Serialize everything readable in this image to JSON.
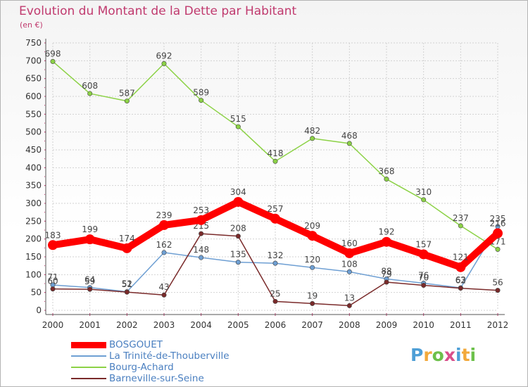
{
  "chart_data": {
    "type": "line",
    "title": "Evolution du Montant de la Dette par Habitant",
    "unit_label": "(en €)",
    "categories": [
      "2000",
      "2001",
      "2002",
      "2003",
      "2004",
      "2005",
      "2006",
      "2007",
      "2008",
      "2009",
      "2010",
      "2011",
      "2012"
    ],
    "ylim": [
      0,
      750
    ],
    "yticks": [
      0,
      50,
      100,
      150,
      200,
      250,
      300,
      350,
      400,
      450,
      500,
      550,
      600,
      650,
      700,
      750
    ],
    "grid": true,
    "legend_position": "bottom-left",
    "series": [
      {
        "name": "BOSGOUET",
        "color": "#ff0000",
        "emphasis": true,
        "values": [
          183,
          199,
          174,
          239,
          253,
          304,
          257,
          209,
          160,
          192,
          157,
          121,
          216
        ],
        "labels": [
          "183",
          "199",
          "174",
          "239",
          "253",
          "304",
          "257",
          "209",
          "160",
          "192",
          "157",
          "121",
          "216"
        ]
      },
      {
        "name": "La Trinité-de-Thouberville",
        "color": "#6e9fd3",
        "values": [
          71,
          64,
          52,
          162,
          148,
          135,
          132,
          120,
          108,
          88,
          76,
          63,
          235
        ],
        "labels": [
          "71",
          "64",
          "52",
          "162",
          "148",
          "135",
          "132",
          "120",
          "108",
          "88",
          "76",
          "63",
          "235"
        ]
      },
      {
        "name": "Bourg-Achard",
        "color": "#8cd246",
        "values": [
          698,
          608,
          587,
          692,
          589,
          515,
          418,
          482,
          468,
          368,
          310,
          237,
          171
        ],
        "labels": [
          "698",
          "608",
          "587",
          "692",
          "589",
          "515",
          "418",
          "482",
          "468",
          "368",
          "310",
          "237",
          "171"
        ]
      },
      {
        "name": "Barneville-sur-Seine",
        "color": "#7a2a2a",
        "values": [
          60,
          59,
          51,
          43,
          215,
          208,
          25,
          19,
          13,
          79,
          70,
          62,
          56
        ],
        "labels": [
          "60",
          "59",
          "51",
          "43",
          "215",
          "208",
          "25",
          "19",
          "13",
          "79",
          "70",
          "62",
          "56"
        ]
      }
    ]
  },
  "brand": {
    "letters": [
      "P",
      "r",
      "o",
      "x",
      "i",
      "t",
      "i"
    ],
    "colors": [
      "#4e9fd6",
      "#f2a93b",
      "#6cc04a",
      "#d94f8a",
      "#4e9fd6",
      "#f2a93b",
      "#6cc04a"
    ]
  }
}
